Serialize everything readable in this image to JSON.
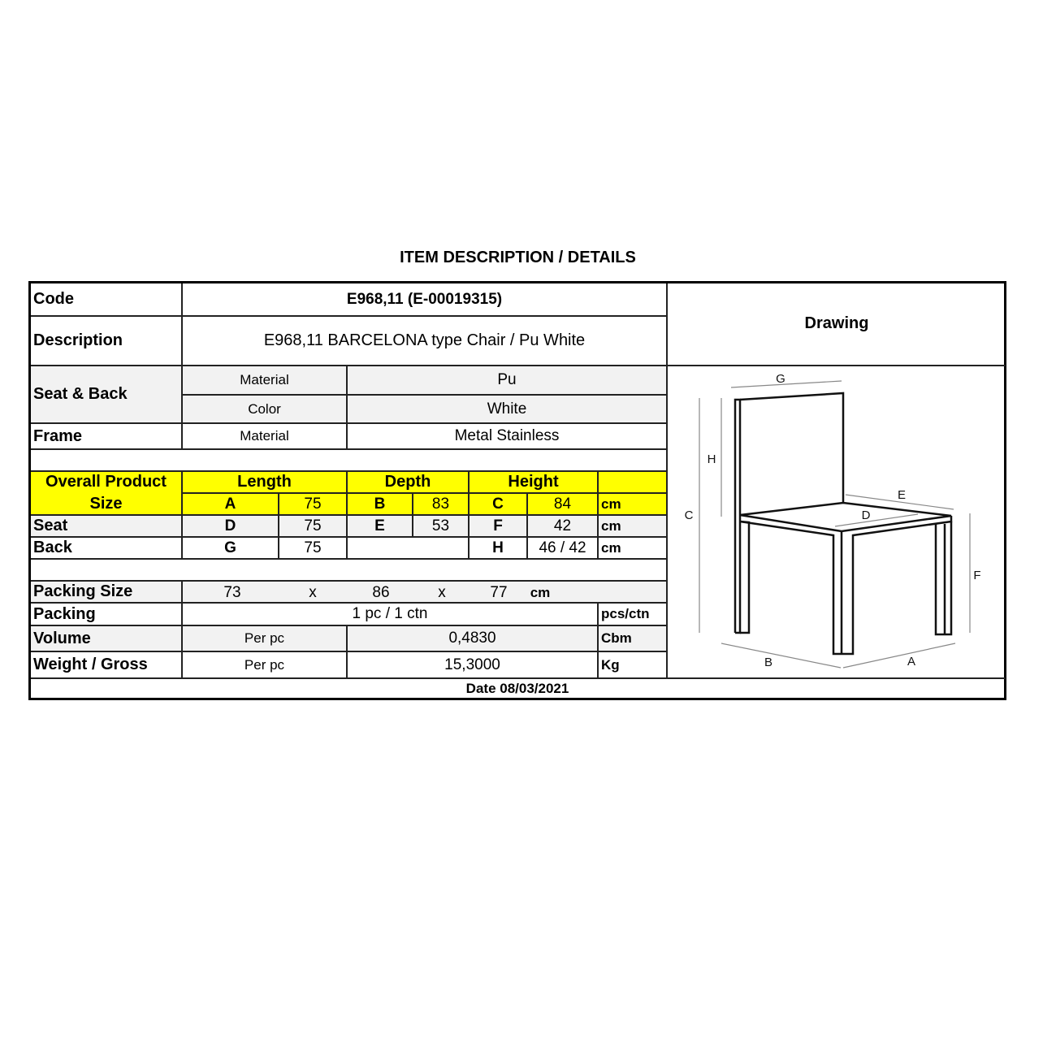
{
  "title": "ITEM DESCRIPTION / DETAILS",
  "code": {
    "label": "Code",
    "value": "E968,11 (E-00019315)"
  },
  "description": {
    "label": "Description",
    "value": "E968,11 BARCELONA type Chair / Pu White"
  },
  "drawing": {
    "label": "Drawing",
    "dims": [
      "G",
      "H",
      "C",
      "E",
      "D",
      "F",
      "B",
      "A"
    ]
  },
  "seat_back": {
    "label": "Seat & Back",
    "material_label": "Material",
    "material": "Pu",
    "color_label": "Color",
    "color": "White"
  },
  "frame": {
    "label": "Frame",
    "material_label": "Material",
    "material": "Metal Stainless"
  },
  "size": {
    "header": {
      "label": "Overall Product Size",
      "length": "Length",
      "depth": "Depth",
      "height": "Height"
    },
    "overall": {
      "a": "A",
      "a_val": "75",
      "b": "B",
      "b_val": "83",
      "c": "C",
      "c_val": "84",
      "unit": "cm"
    },
    "seat": {
      "label": "Seat",
      "d": "D",
      "d_val": "75",
      "e": "E",
      "e_val": "53",
      "f": "F",
      "f_val": "42",
      "unit": "cm"
    },
    "back": {
      "label": "Back",
      "g": "G",
      "g_val": "75",
      "h": "H",
      "h_val": "46 / 42",
      "unit": "cm"
    }
  },
  "packing_size": {
    "label": "Packing Size",
    "l": "73",
    "x1": "x",
    "w": "86",
    "x2": "x",
    "h": "77",
    "unit": "cm"
  },
  "packing": {
    "label": "Packing",
    "value": "1 pc / 1 ctn",
    "unit": "pcs/ctn"
  },
  "volume": {
    "label": "Volume",
    "per": "Per pc",
    "value": "0,4830",
    "unit": "Cbm"
  },
  "weight": {
    "label": "Weight / Gross",
    "per": "Per pc",
    "value": "15,3000",
    "unit": "Kg"
  },
  "date": "Date 08/03/2021",
  "colors": {
    "highlight": "#ffff00",
    "shade": "#f2f2f2"
  }
}
